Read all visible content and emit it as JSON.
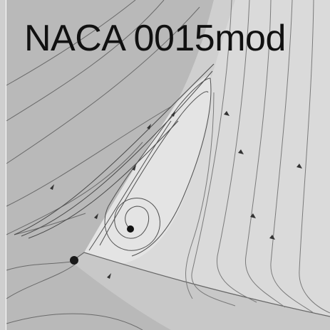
{
  "figure": {
    "label": "NACA 0015mod"
  },
  "colors": {
    "outer_region": "#b9b9b9",
    "light_region": "#dcdcdc",
    "vortex_region": "#e6e6e6",
    "surface": "#cfcfcf",
    "streamline": "#555555",
    "text": "#111111"
  }
}
